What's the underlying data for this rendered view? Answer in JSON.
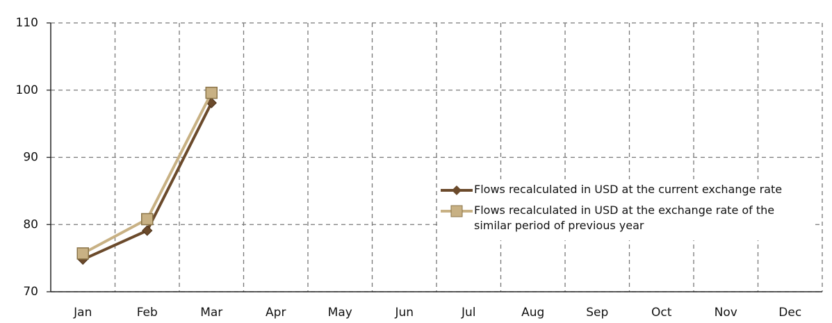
{
  "chart_data": {
    "type": "line",
    "categories": [
      "Jan",
      "Feb",
      "Mar",
      "Apr",
      "May",
      "Jun",
      "Jul",
      "Aug",
      "Sep",
      "Oct",
      "Nov",
      "Dec"
    ],
    "series": [
      {
        "name": "Flows recalculated in USD at the current exchange rate",
        "color": "#6b4a2b",
        "marker": "diamond",
        "values": [
          74.8,
          79.1,
          98.1,
          null,
          null,
          null,
          null,
          null,
          null,
          null,
          null,
          null
        ]
      },
      {
        "name": "Flows recalculated in USD at the exchange rate of the similar period of previous year",
        "color": "#c8b184",
        "marker": "square",
        "values": [
          75.7,
          80.8,
          99.6,
          null,
          null,
          null,
          null,
          null,
          null,
          null,
          null,
          null
        ]
      }
    ],
    "ylim": [
      70,
      110
    ],
    "yticks": [
      70,
      80,
      90,
      100,
      110
    ],
    "grid": true,
    "legend": "right"
  }
}
